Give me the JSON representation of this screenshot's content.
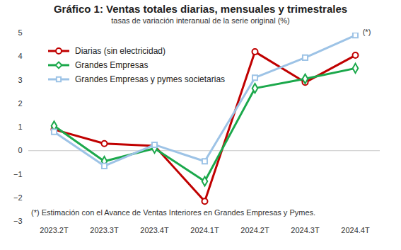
{
  "chart_data": {
    "type": "line",
    "title": "Gráfico 1: Ventas totales diarias, mensuales y trimestrales",
    "subtitle": "tasas de variación interanual de la serie original (%)",
    "categories": [
      "2023.2T",
      "2023.3T",
      "2023.4T",
      "2024.1T",
      "2024.2T",
      "2024.3T",
      "2024.4T"
    ],
    "series": [
      {
        "name": "Diarias (sin electricidad)",
        "color": "#C00000",
        "marker": "circle",
        "values": [
          0.9,
          0.3,
          0.2,
          -2.15,
          4.2,
          2.9,
          4.05
        ]
      },
      {
        "name": "Grandes Empresas",
        "color": "#1BA84B",
        "marker": "diamond",
        "values": [
          1.05,
          -0.45,
          0.1,
          -1.3,
          2.65,
          3.05,
          3.5
        ]
      },
      {
        "name": "Grandes Empresas y pymes societarias",
        "color": "#9DC3E6",
        "marker": "square",
        "values": [
          0.8,
          -0.65,
          0.25,
          -0.45,
          3.1,
          3.95,
          4.9
        ]
      }
    ],
    "ylim": [
      -3,
      5
    ],
    "yticks": [
      -3,
      -2,
      -1,
      0,
      1,
      2,
      3,
      4,
      5
    ],
    "grid": false,
    "legend": "top-left",
    "annotations": [
      {
        "text": "(*)",
        "x": "2024.4T",
        "y": 4.9
      },
      {
        "text": "(*) Estimación con el Avance de Ventas Interiores en Grandes Empresas y Pymes."
      }
    ]
  }
}
